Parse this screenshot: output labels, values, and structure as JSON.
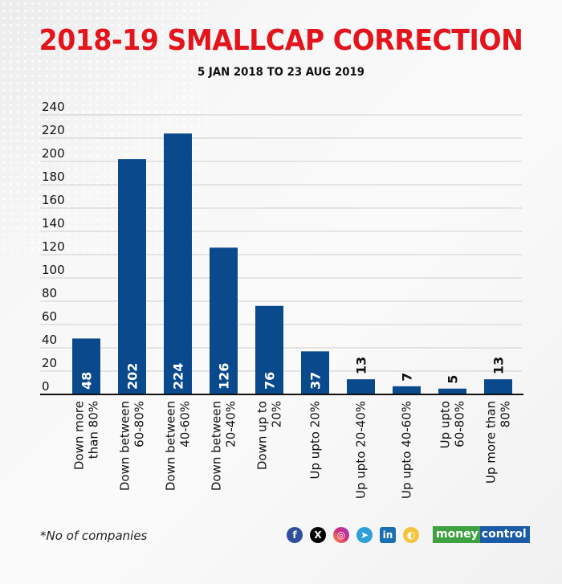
{
  "header": {
    "title": "2018-19 SMALLCAP CORRECTION",
    "subtitle": "5 JAN 2018 TO 23 AUG 2019"
  },
  "footer": {
    "footnote": "*No of companies",
    "social_icons": [
      "facebook-icon",
      "x-icon",
      "instagram-icon",
      "telegram-icon",
      "linkedin-icon",
      "koo-icon"
    ],
    "brand_part1": "money",
    "brand_part2": "control"
  },
  "colors": {
    "title": "#e3141b",
    "bar": "#0a4a8c",
    "grid": "#cfcfcf",
    "axis": "#111111"
  },
  "chart_data": {
    "type": "bar",
    "title": "2018-19 SMALLCAP CORRECTION",
    "subtitle": "5 JAN 2018 TO 23 AUG 2019",
    "xlabel": "",
    "ylabel": "",
    "ylim": [
      0,
      240
    ],
    "yticks": [
      0,
      20,
      40,
      60,
      80,
      100,
      120,
      140,
      160,
      180,
      200,
      220,
      240
    ],
    "grid": true,
    "categories": [
      [
        "Down more",
        "than 80%"
      ],
      [
        "Down between",
        "60-80%"
      ],
      [
        "Down between",
        "40-60%"
      ],
      [
        "Down between",
        "20-40%"
      ],
      [
        "Down up to",
        "20%"
      ],
      [
        "Up upto 20%"
      ],
      [
        "Up upto 20-40%"
      ],
      [
        "Up upto 40-60%"
      ],
      [
        "Up upto",
        "60-80%"
      ],
      [
        "Up more than",
        "80%"
      ]
    ],
    "values": [
      48,
      202,
      224,
      126,
      76,
      37,
      13,
      7,
      5,
      13
    ],
    "data_labels": [
      "48",
      "202",
      "224",
      "126",
      "76",
      "37",
      "13",
      "7",
      "5",
      "13"
    ],
    "note": "*No of companies"
  }
}
